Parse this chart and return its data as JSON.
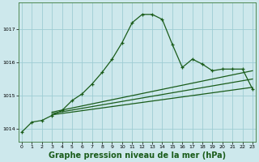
{
  "background_color": "#cde8ec",
  "grid_color": "#9ecdd4",
  "line_color": "#1a5c1a",
  "xlabel": "Graphe pression niveau de la mer (hPa)",
  "xlabel_fontsize": 7,
  "ylim": [
    1013.6,
    1017.8
  ],
  "xlim": [
    -0.3,
    23.3
  ],
  "yticks": [
    1014,
    1015,
    1016,
    1017
  ],
  "xticks": [
    0,
    1,
    2,
    3,
    4,
    5,
    6,
    7,
    8,
    9,
    10,
    11,
    12,
    13,
    14,
    15,
    16,
    17,
    18,
    19,
    20,
    21,
    22,
    23
  ],
  "main_series": [
    [
      0,
      1013.9
    ],
    [
      1,
      1014.2
    ],
    [
      2,
      1014.25
    ],
    [
      3,
      1014.4
    ],
    [
      4,
      1014.55
    ],
    [
      5,
      1014.85
    ],
    [
      6,
      1015.05
    ],
    [
      7,
      1015.35
    ],
    [
      8,
      1015.7
    ],
    [
      9,
      1016.1
    ],
    [
      10,
      1016.6
    ],
    [
      11,
      1017.2
    ],
    [
      12,
      1017.45
    ],
    [
      13,
      1017.45
    ],
    [
      14,
      1017.3
    ],
    [
      15,
      1016.55
    ],
    [
      16,
      1015.85
    ],
    [
      17,
      1016.1
    ],
    [
      18,
      1015.95
    ],
    [
      19,
      1015.75
    ],
    [
      20,
      1015.8
    ],
    [
      21,
      1015.8
    ],
    [
      22,
      1015.8
    ],
    [
      23,
      1015.2
    ]
  ],
  "flat_series1": [
    [
      3,
      1014.42
    ],
    [
      23,
      1015.25
    ]
  ],
  "flat_series2": [
    [
      3,
      1014.46
    ],
    [
      23,
      1015.5
    ]
  ],
  "flat_series3": [
    [
      3,
      1014.5
    ],
    [
      23,
      1015.75
    ]
  ]
}
